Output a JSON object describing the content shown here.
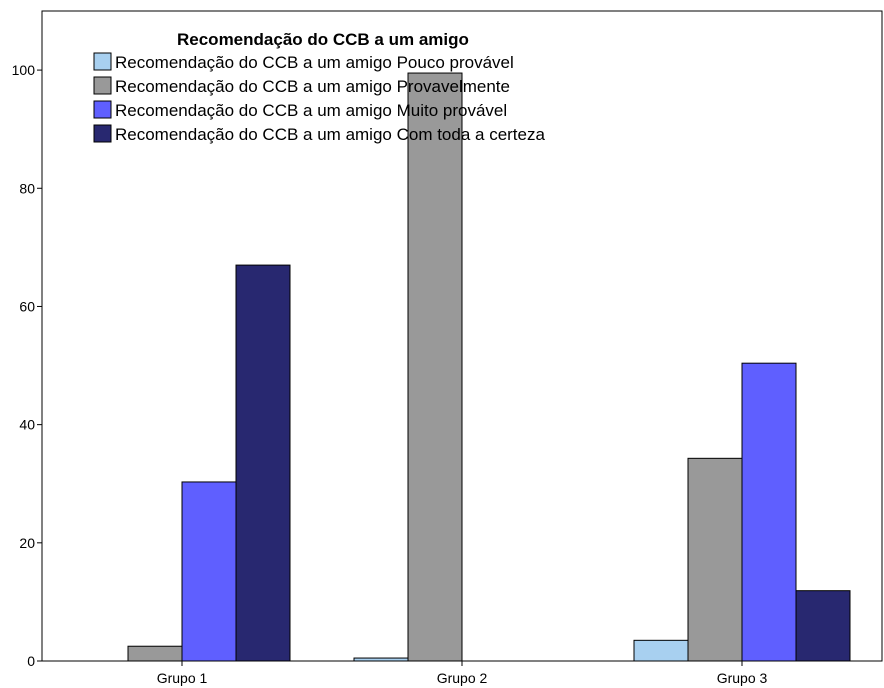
{
  "chart_data": {
    "type": "bar",
    "categories": [
      "Grupo 1",
      "Grupo 2",
      "Grupo 3"
    ],
    "series": [
      {
        "name": "Recomendação do CCB a um amigo Pouco provável",
        "color": "#a8d0f0",
        "values": [
          0,
          0.5,
          3.5
        ]
      },
      {
        "name": "Recomendação do CCB a um amigo Provavelmente",
        "color": "#999999",
        "values": [
          2.5,
          99.5,
          34.3
        ]
      },
      {
        "name": "Recomendação do CCB a um amigo Muito provável",
        "color": "#5f5fff",
        "values": [
          30.3,
          0,
          50.4
        ]
      },
      {
        "name": "Recomendação do CCB a um amigo Com toda a certeza",
        "color": "#282870",
        "values": [
          67,
          0,
          11.9
        ]
      }
    ],
    "legend_title": "Recomendação do CCB a um amigo",
    "yticks": [
      0,
      20,
      40,
      60,
      80,
      100
    ],
    "ylim": [
      0,
      110
    ],
    "grid": false,
    "legend_position": "top-left"
  }
}
